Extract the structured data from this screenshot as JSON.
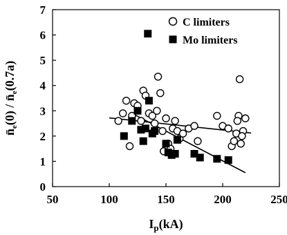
{
  "chart_data": {
    "type": "scatter",
    "xlabel": "I_p(kA)",
    "xlabel_main": "I",
    "xlabel_sub": "p",
    "xlabel_unit": "(kA)",
    "ylabel": "n̄e(0) / n̄e(0.7a)",
    "ylabel_parts": [
      "n̄",
      "e",
      "(0) / ",
      "n̄",
      "e",
      "(0.7a)"
    ],
    "xlim": [
      50,
      250
    ],
    "ylim": [
      0,
      7
    ],
    "xticks": [
      50,
      100,
      150,
      200,
      250
    ],
    "yticks": [
      0,
      1,
      2,
      3,
      4,
      5,
      6,
      7
    ],
    "grid": false,
    "legend_position": "top-right",
    "series": [
      {
        "name": "C limiters",
        "marker": "open-circle",
        "color": "#000000",
        "points": [
          [
            108,
            2.6
          ],
          [
            112,
            2.9
          ],
          [
            115,
            3.4
          ],
          [
            118,
            1.6
          ],
          [
            120,
            2.8
          ],
          [
            122,
            3.3
          ],
          [
            125,
            3.2
          ],
          [
            128,
            2.6
          ],
          [
            130,
            3.8
          ],
          [
            132,
            3.6
          ],
          [
            135,
            2.9
          ],
          [
            138,
            2.8
          ],
          [
            140,
            2.5
          ],
          [
            142,
            3.0
          ],
          [
            143,
            4.35
          ],
          [
            145,
            3.7
          ],
          [
            147,
            2.2
          ],
          [
            148,
            1.4
          ],
          [
            150,
            2.7
          ],
          [
            152,
            1.7
          ],
          [
            154,
            1.5
          ],
          [
            156,
            2.3
          ],
          [
            158,
            2.6
          ],
          [
            160,
            2.2
          ],
          [
            162,
            1.9
          ],
          [
            165,
            2.1
          ],
          [
            170,
            2.3
          ],
          [
            175,
            2.4
          ],
          [
            178,
            1.8
          ],
          [
            195,
            2.8
          ],
          [
            200,
            2.4
          ],
          [
            205,
            2.3
          ],
          [
            208,
            1.6
          ],
          [
            210,
            1.8
          ],
          [
            212,
            2.1
          ],
          [
            214,
            2.8
          ],
          [
            215,
            4.25
          ],
          [
            216,
            1.7
          ],
          [
            218,
            2.2
          ],
          [
            220,
            2.7
          ],
          [
            213,
            2.6
          ],
          [
            217,
            2.0
          ]
        ]
      },
      {
        "name": "Mo limiters",
        "marker": "filled-square",
        "color": "#000000",
        "points": [
          [
            113,
            2.0
          ],
          [
            120,
            2.6
          ],
          [
            125,
            3.0
          ],
          [
            128,
            2.25
          ],
          [
            130,
            1.8
          ],
          [
            132,
            2.3
          ],
          [
            134,
            6.05
          ],
          [
            135,
            3.4
          ],
          [
            138,
            2.1
          ],
          [
            140,
            2.2
          ],
          [
            150,
            1.7
          ],
          [
            152,
            1.35
          ],
          [
            155,
            1.25
          ],
          [
            158,
            1.3
          ],
          [
            160,
            1.85
          ],
          [
            175,
            1.3
          ],
          [
            180,
            1.15
          ],
          [
            195,
            1.1
          ],
          [
            205,
            1.05
          ]
        ]
      }
    ],
    "trendlines": [
      {
        "series": "C limiters",
        "x": [
          100,
          225
        ],
        "y": [
          2.72,
          2.12
        ]
      },
      {
        "series": "Mo limiters",
        "x": [
          120,
          220
        ],
        "y": [
          2.9,
          0.55
        ]
      }
    ]
  }
}
